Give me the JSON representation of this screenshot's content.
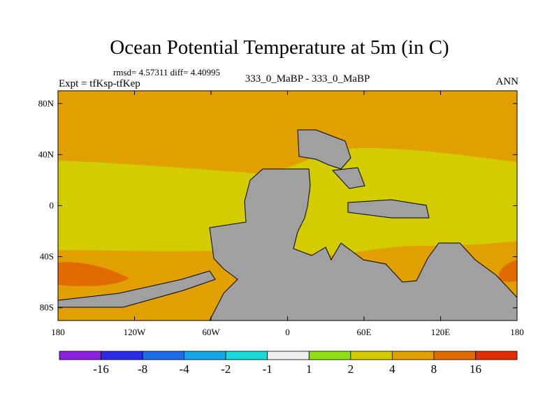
{
  "chart_data": {
    "type": "heatmap",
    "title": "Ocean Potential Temperature at 5m (in C)",
    "stats_text": "rmsd= 4.57311  diff= 4.40995",
    "subtitle": "333_0_MaBP - 333_0_MaBP",
    "left_label": "Expt = tfKsp-tfKep",
    "right_label": "ANN",
    "x_ticks": [
      "180",
      "120W",
      "60W",
      "0",
      "60E",
      "120E",
      "180"
    ],
    "y_ticks": [
      "80N",
      "40N",
      "0",
      "40S",
      "80S"
    ],
    "lon_range": [
      -180,
      180
    ],
    "lat_range": [
      -90,
      90
    ],
    "land_color": "#a0a0a0",
    "levels": [
      "-16",
      "-8",
      "-4",
      "-2",
      "-1",
      "1",
      "2",
      "4",
      "8",
      "16"
    ],
    "colors": [
      "#8a1fe0",
      "#2a2ae8",
      "#1a6fe8",
      "#14a8e8",
      "#18d8d8",
      "#efefef",
      "#8ce014",
      "#d2cc00",
      "#e2a000",
      "#e06b00",
      "#e02e00"
    ],
    "regions": [
      {
        "name": "north-band",
        "level": "4 to 8",
        "color": "#e2a000"
      },
      {
        "name": "tropical-band",
        "level": "2 to 4",
        "color": "#d2cc00"
      },
      {
        "name": "southern-band",
        "level": "4 to 8",
        "color": "#e2a000"
      },
      {
        "name": "southern-warm-core",
        "level": "8 to 16",
        "color": "#e06b00"
      }
    ]
  }
}
